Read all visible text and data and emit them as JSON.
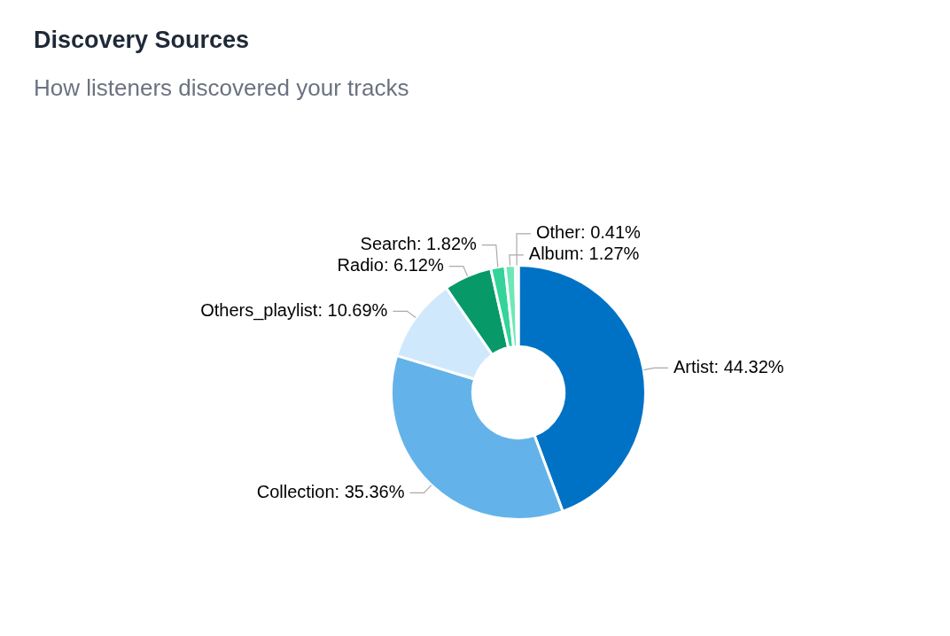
{
  "chart_data": {
    "type": "donut",
    "title": "Discovery Sources",
    "subtitle": "How listeners discovered your tracks",
    "categories": [
      "Artist",
      "Collection",
      "Others_playlist",
      "Radio",
      "Search",
      "Album",
      "Other"
    ],
    "values": [
      44.32,
      35.36,
      10.69,
      6.12,
      1.82,
      1.27,
      0.41
    ],
    "value_labels": [
      "44.32%",
      "35.36%",
      "10.69%",
      "6.12%",
      "1.82%",
      "1.27%",
      "0.41%"
    ],
    "colors": [
      "#0072c6",
      "#63b3ea",
      "#cfe8fc",
      "#089968",
      "#34d399",
      "#6ee7b7",
      "#d1fae5"
    ],
    "legend": false
  }
}
